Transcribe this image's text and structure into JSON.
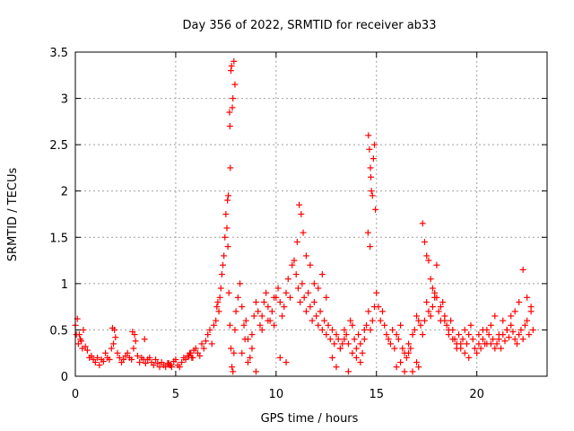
{
  "chart_data": {
    "type": "scatter",
    "title": "Day 356 of 2022, SRMTID for receiver ab33",
    "xlabel": "GPS time / hours",
    "ylabel": "SRMTID / TECUs",
    "xlim": [
      0,
      23.5
    ],
    "ylim": [
      0,
      3.5
    ],
    "x_ticks": [
      0,
      5,
      10,
      15,
      20
    ],
    "y_ticks": [
      0,
      0.5,
      1,
      1.5,
      2,
      2.5,
      3,
      3.5
    ],
    "x_tick_labels": [
      "0",
      "5",
      "10",
      "15",
      "20"
    ],
    "y_tick_labels": [
      "0",
      "0.5",
      "1",
      "1.5",
      "2",
      "2.5",
      "3",
      "3.5"
    ],
    "grid": true,
    "marker": "+",
    "series": [
      {
        "name": "SRMTID",
        "color": "#ff0000",
        "x": [
          0.0,
          0.1,
          0.2,
          0.3,
          0.4,
          0.5,
          0.6,
          0.7,
          0.8,
          0.9,
          1.0,
          1.1,
          1.2,
          1.3,
          1.4,
          1.5,
          1.6,
          1.7,
          1.8,
          1.9,
          2.0,
          2.1,
          2.2,
          2.3,
          2.4,
          2.5,
          2.6,
          2.7,
          2.8,
          2.9,
          3.0,
          3.1,
          3.2,
          3.3,
          3.4,
          3.5,
          3.6,
          3.7,
          3.8,
          3.9,
          4.0,
          4.1,
          4.2,
          4.3,
          4.4,
          4.5,
          4.6,
          4.7,
          4.8,
          4.9,
          5.0,
          5.1,
          5.2,
          5.3,
          5.4,
          5.5,
          5.6,
          5.7,
          5.8,
          5.9,
          6.0,
          6.1,
          6.2,
          6.3,
          6.4,
          6.5,
          6.6,
          6.7,
          6.8,
          6.9,
          7.0,
          7.05,
          7.1,
          7.15,
          7.2,
          7.25,
          7.3,
          7.35,
          7.4,
          7.45,
          7.5,
          7.55,
          7.6,
          7.65,
          7.7,
          7.75,
          7.8,
          7.85,
          7.9,
          7.95,
          8.0,
          8.1,
          8.2,
          8.3,
          8.4,
          8.5,
          8.6,
          8.7,
          8.8,
          8.9,
          9.0,
          9.1,
          9.2,
          9.3,
          9.4,
          9.5,
          9.6,
          9.7,
          9.8,
          9.9,
          10.0,
          10.1,
          10.2,
          10.3,
          10.4,
          10.5,
          10.6,
          10.7,
          10.8,
          10.9,
          11.0,
          11.1,
          11.2,
          11.3,
          11.4,
          11.5,
          11.6,
          11.7,
          11.8,
          11.9,
          12.0,
          12.1,
          12.2,
          12.3,
          12.4,
          12.5,
          12.6,
          12.7,
          12.8,
          12.9,
          13.0,
          13.1,
          13.2,
          13.3,
          13.4,
          13.5,
          13.6,
          13.7,
          13.8,
          13.9,
          14.0,
          14.1,
          14.2,
          14.3,
          14.4,
          14.5,
          14.6,
          14.7,
          14.8,
          14.9,
          15.0,
          15.1,
          15.2,
          15.3,
          15.4,
          15.5,
          15.6,
          15.7,
          15.8,
          15.9,
          16.0,
          16.1,
          16.2,
          16.3,
          16.4,
          16.5,
          16.6,
          16.7,
          16.8,
          16.9,
          17.0,
          17.1,
          17.2,
          17.3,
          17.4,
          17.5,
          17.6,
          17.7,
          17.8,
          17.9,
          18.0,
          18.1,
          18.2,
          18.3,
          18.4,
          18.5,
          18.6,
          18.7,
          18.8,
          18.9,
          19.0,
          19.1,
          19.2,
          19.3,
          19.4,
          19.5,
          19.6,
          19.7,
          19.8,
          19.9,
          20.0,
          20.1,
          20.2,
          20.3,
          20.4,
          20.5,
          20.6,
          20.7,
          20.8,
          20.9,
          21.0,
          21.1,
          21.2,
          21.3,
          21.4,
          21.5,
          21.6,
          21.7,
          21.8,
          21.9,
          22.0,
          22.1,
          22.2,
          22.3,
          22.4,
          22.5,
          22.6,
          22.7,
          22.8,
          7.72,
          7.75,
          7.78,
          7.82,
          7.85,
          7.9,
          7.7,
          7.68,
          7.95,
          7.62,
          7.58,
          14.6,
          14.65,
          14.7,
          14.75,
          14.8,
          14.85,
          14.9,
          14.72,
          14.95,
          14.58,
          14.68,
          11.05,
          11.15,
          11.25,
          11.35,
          11.5,
          11.7,
          11.9,
          12.1,
          12.3,
          12.5,
          17.3,
          17.4,
          17.5,
          17.6,
          17.7,
          17.8,
          17.9,
          18.0,
          18.2,
          18.4,
          8.3,
          8.45,
          8.6,
          8.8,
          9.0,
          9.3,
          9.6,
          9.9,
          10.2,
          10.5,
          12.8,
          13.0,
          13.2,
          13.4,
          13.6,
          13.8,
          14.0,
          14.2,
          14.4,
          16.0,
          16.2,
          16.4,
          16.6,
          16.8,
          17.0,
          17.1,
          18.6,
          18.8,
          19.0,
          19.2,
          19.4,
          19.6,
          20.1,
          20.3,
          20.5,
          20.7,
          20.9,
          21.1,
          21.3,
          21.5,
          21.7,
          21.9,
          22.1,
          22.3,
          22.5,
          22.7,
          0.05,
          0.15,
          0.25,
          0.35,
          1.85,
          1.95,
          2.85,
          2.95,
          3.45,
          4.65,
          4.75,
          5.65,
          5.75,
          5.85
        ],
        "y": [
          0.55,
          0.62,
          0.45,
          0.38,
          0.5,
          0.32,
          0.28,
          0.2,
          0.22,
          0.18,
          0.15,
          0.2,
          0.12,
          0.18,
          0.16,
          0.25,
          0.2,
          0.18,
          0.3,
          0.35,
          0.42,
          0.25,
          0.2,
          0.15,
          0.18,
          0.22,
          0.25,
          0.2,
          0.18,
          0.3,
          0.38,
          0.22,
          0.15,
          0.2,
          0.18,
          0.14,
          0.18,
          0.2,
          0.15,
          0.12,
          0.18,
          0.14,
          0.1,
          0.15,
          0.12,
          0.1,
          0.14,
          0.12,
          0.1,
          0.16,
          0.18,
          0.12,
          0.1,
          0.15,
          0.2,
          0.18,
          0.22,
          0.25,
          0.2,
          0.28,
          0.3,
          0.25,
          0.22,
          0.35,
          0.3,
          0.38,
          0.45,
          0.5,
          0.35,
          0.55,
          0.6,
          0.75,
          0.8,
          0.7,
          0.85,
          0.95,
          1.1,
          1.2,
          1.3,
          1.5,
          1.75,
          1.6,
          1.4,
          0.9,
          0.55,
          0.3,
          0.1,
          0.05,
          0.25,
          0.5,
          0.7,
          0.85,
          1.0,
          0.75,
          0.55,
          0.6,
          0.4,
          0.2,
          0.45,
          0.65,
          0.8,
          0.7,
          0.55,
          0.65,
          0.8,
          0.9,
          0.75,
          0.6,
          0.7,
          0.55,
          0.85,
          0.95,
          0.8,
          0.65,
          0.75,
          0.9,
          1.05,
          0.85,
          1.2,
          1.25,
          1.1,
          0.95,
          0.8,
          1.0,
          0.85,
          0.7,
          0.9,
          0.75,
          0.6,
          0.8,
          0.65,
          0.55,
          0.7,
          0.5,
          0.6,
          0.45,
          0.55,
          0.4,
          0.5,
          0.35,
          0.45,
          0.4,
          0.3,
          0.35,
          0.5,
          0.45,
          0.35,
          0.6,
          0.55,
          0.4,
          0.3,
          0.45,
          0.35,
          0.25,
          0.4,
          0.55,
          0.7,
          0.5,
          0.6,
          0.75,
          0.9,
          0.75,
          0.6,
          0.7,
          0.55,
          0.45,
          0.4,
          0.35,
          0.5,
          0.3,
          0.45,
          0.4,
          0.55,
          0.3,
          0.25,
          0.2,
          0.35,
          0.3,
          0.45,
          0.5,
          0.65,
          0.6,
          0.55,
          0.45,
          0.6,
          0.8,
          0.7,
          0.65,
          0.75,
          0.9,
          0.85,
          0.7,
          0.6,
          0.8,
          0.65,
          0.55,
          0.45,
          0.6,
          0.5,
          0.4,
          0.35,
          0.45,
          0.3,
          0.4,
          0.5,
          0.35,
          0.45,
          0.55,
          0.4,
          0.3,
          0.25,
          0.35,
          0.3,
          0.4,
          0.35,
          0.5,
          0.45,
          0.35,
          0.4,
          0.3,
          0.35,
          0.4,
          0.3,
          0.45,
          0.38,
          0.5,
          0.42,
          0.55,
          0.48,
          0.4,
          0.35,
          0.45,
          0.5,
          0.4,
          0.55,
          0.6,
          0.45,
          0.7,
          0.5,
          2.25,
          3.3,
          3.35,
          2.9,
          3.0,
          3.4,
          2.7,
          2.85,
          3.15,
          1.95,
          1.9,
          2.6,
          2.45,
          2.25,
          2.0,
          1.95,
          2.35,
          2.5,
          2.15,
          1.8,
          1.55,
          1.4,
          1.45,
          1.85,
          1.75,
          1.55,
          1.3,
          1.2,
          1.0,
          0.95,
          1.1,
          0.85,
          1.65,
          1.45,
          1.3,
          1.25,
          1.05,
          0.95,
          0.85,
          1.2,
          0.75,
          0.6,
          0.25,
          0.4,
          0.15,
          0.3,
          0.05,
          0.5,
          0.6,
          0.85,
          0.2,
          0.15,
          0.2,
          0.1,
          0.3,
          0.4,
          0.05,
          0.25,
          0.2,
          0.15,
          0.5,
          0.1,
          0.15,
          0.05,
          0.25,
          0.05,
          0.15,
          0.1,
          0.5,
          0.4,
          0.3,
          0.35,
          0.25,
          0.2,
          0.45,
          0.5,
          0.35,
          0.55,
          0.65,
          0.45,
          0.6,
          0.5,
          0.65,
          0.7,
          0.8,
          1.15,
          0.85,
          0.75,
          0.45,
          0.35,
          0.4,
          0.3,
          0.52,
          0.5,
          0.48,
          0.45,
          0.4,
          0.14,
          0.12,
          0.22,
          0.25,
          0.2
        ]
      }
    ]
  }
}
